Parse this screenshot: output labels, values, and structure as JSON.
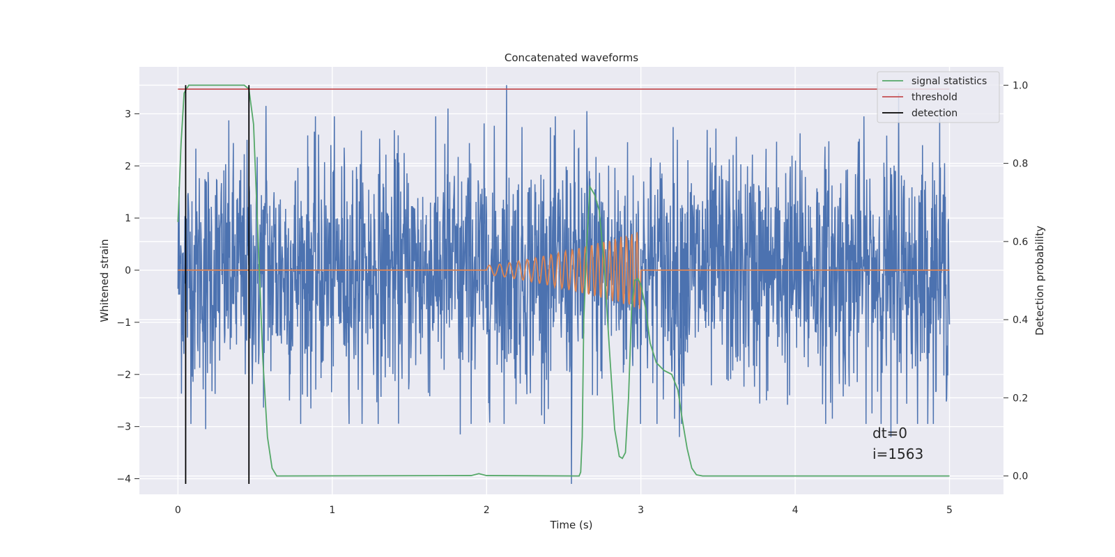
{
  "chart_data": {
    "type": "line",
    "title": "Concatenated waveforms",
    "xlabel": "Time (s)",
    "ylabel": "Whitened strain",
    "ylabel_right": "Detection probability",
    "xlim": [
      -0.25,
      5.35
    ],
    "ylim": [
      -4.3,
      3.9
    ],
    "ylim_right": [
      -0.047,
      1.047
    ],
    "xticks": [
      "0",
      "1",
      "2",
      "3",
      "4",
      "5"
    ],
    "yticks": [
      "3",
      "2",
      "1",
      "0",
      "−1",
      "−2",
      "−3",
      "−4"
    ],
    "yticks_right": [
      "1.0",
      "0.8",
      "0.6",
      "0.4",
      "0.2",
      "0.0"
    ],
    "grid": true,
    "legend_placement": "top-right",
    "noise": {
      "color": "#4c72b0",
      "x_range": [
        0,
        5
      ],
      "peaks": [
        {
          "x": 0.18,
          "y": 3.05
        },
        {
          "x": 0.57,
          "y": 3.15
        },
        {
          "x": 1.75,
          "y": 3.1
        },
        {
          "x": 2.13,
          "y": 3.55
        },
        {
          "x": 2.65,
          "y": 3.05
        },
        {
          "x": 4.67,
          "y": 3.4
        },
        {
          "x": 0.18,
          "y": -3.05
        },
        {
          "x": 1.83,
          "y": -3.15
        },
        {
          "x": 2.55,
          "y": -4.1
        },
        {
          "x": 3.25,
          "y": -3.2
        },
        {
          "x": 4.24,
          "y": -2.85
        },
        {
          "x": 4.62,
          "y": -3.2
        }
      ]
    },
    "injected_chirp": {
      "color": "#dd8452",
      "flat_value": 0,
      "start": 2.0,
      "end": 3.0,
      "max_amplitude": 0.75,
      "start_frequency": 14,
      "end_frequency": 30
    },
    "series": [
      {
        "name": "signal statistics",
        "color": "#55a868",
        "axis": "right",
        "points": [
          [
            0.0,
            0.65
          ],
          [
            0.02,
            0.85
          ],
          [
            0.04,
            0.98
          ],
          [
            0.07,
            1.0
          ],
          [
            0.43,
            1.0
          ],
          [
            0.46,
            0.99
          ],
          [
            0.49,
            0.9
          ],
          [
            0.52,
            0.6
          ],
          [
            0.55,
            0.3
          ],
          [
            0.58,
            0.1
          ],
          [
            0.61,
            0.02
          ],
          [
            0.64,
            0.0
          ],
          [
            1.9,
            0.001
          ],
          [
            1.95,
            0.006
          ],
          [
            2.0,
            0.001
          ],
          [
            2.6,
            0.0
          ],
          [
            2.61,
            0.01
          ],
          [
            2.62,
            0.1
          ],
          [
            2.63,
            0.4
          ],
          [
            2.65,
            0.6
          ],
          [
            2.67,
            0.74
          ],
          [
            2.7,
            0.72
          ],
          [
            2.73,
            0.68
          ],
          [
            2.76,
            0.55
          ],
          [
            2.8,
            0.3
          ],
          [
            2.83,
            0.12
          ],
          [
            2.86,
            0.05
          ],
          [
            2.88,
            0.045
          ],
          [
            2.9,
            0.06
          ],
          [
            2.92,
            0.2
          ],
          [
            2.94,
            0.43
          ],
          [
            2.96,
            0.5
          ],
          [
            2.98,
            0.505
          ],
          [
            3.0,
            0.49
          ],
          [
            3.03,
            0.43
          ],
          [
            3.06,
            0.34
          ],
          [
            3.1,
            0.29
          ],
          [
            3.15,
            0.27
          ],
          [
            3.2,
            0.26
          ],
          [
            3.24,
            0.22
          ],
          [
            3.27,
            0.14
          ],
          [
            3.3,
            0.07
          ],
          [
            3.33,
            0.02
          ],
          [
            3.36,
            0.003
          ],
          [
            3.4,
            0.0
          ],
          [
            5.0,
            0.0
          ]
        ]
      },
      {
        "name": "threshold",
        "color": "#c44e52",
        "axis": "right",
        "points": [
          [
            0,
            0.99
          ],
          [
            5,
            0.99
          ]
        ]
      },
      {
        "name": "detection",
        "color": "#000000",
        "axis": "left",
        "segments": [
          [
            [
              0.05,
              -4.1
            ],
            [
              0.05,
              3.55
            ]
          ],
          [
            [
              0.46,
              -4.1
            ],
            [
              0.46,
              3.55
            ]
          ]
        ]
      }
    ],
    "annotations": [
      "dt=0",
      "i=1563"
    ]
  }
}
